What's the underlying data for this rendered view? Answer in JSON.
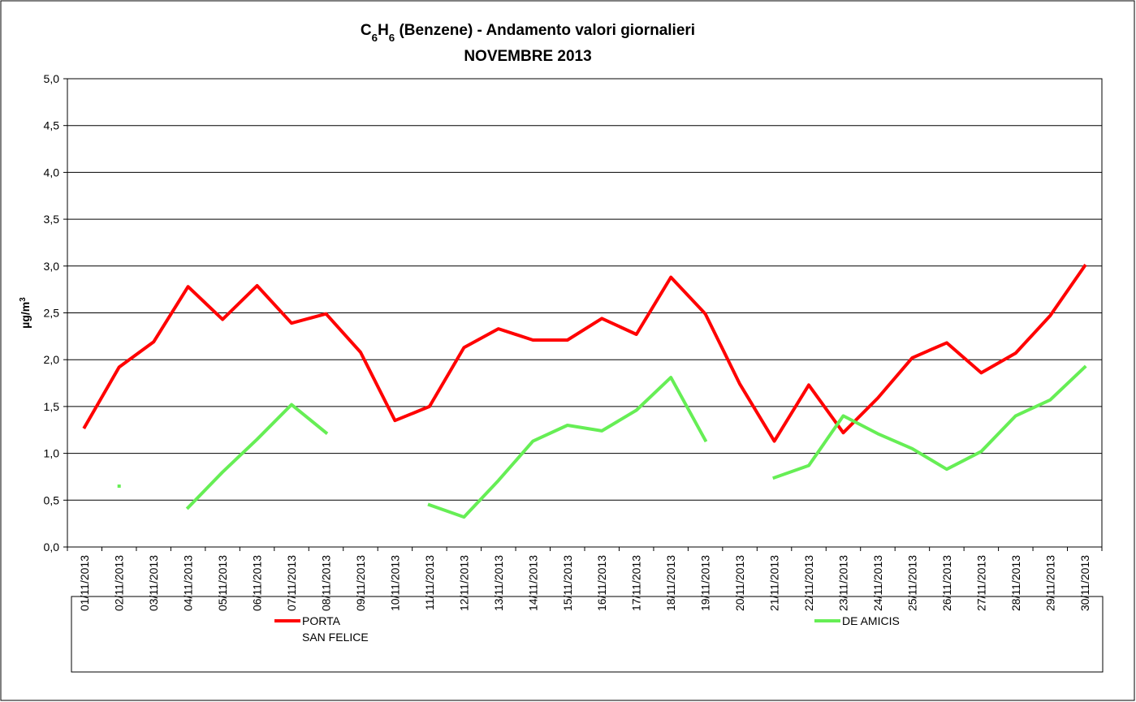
{
  "chart_data": {
    "type": "line",
    "title": [
      "C6H6 (Benzene) - Andamento valori giornalieri",
      "NOVEMBRE 2013"
    ],
    "y_label": "µg/m3",
    "categories": [
      "01/11/2013",
      "02/11/2013",
      "03/11/2013",
      "04/11/2013",
      "05/11/2013",
      "06/11/2013",
      "07/11/2013",
      "08/11/2013",
      "09/11/2013",
      "10/11/2013",
      "11/11/2013",
      "12/11/2013",
      "13/11/2013",
      "14/11/2013",
      "15/11/2013",
      "16/11/2013",
      "17/11/2013",
      "18/11/2013",
      "19/11/2013",
      "20/11/2013",
      "21/11/2013",
      "22/11/2013",
      "23/11/2013",
      "24/11/2013",
      "25/11/2013",
      "26/11/2013",
      "27/11/2013",
      "28/11/2013",
      "29/11/2013",
      "30/11/2013"
    ],
    "series": [
      {
        "name": "PORTA SAN FELICE",
        "color": "#ff0000",
        "values": [
          1.28,
          1.92,
          2.19,
          2.78,
          2.43,
          2.79,
          2.39,
          2.49,
          2.08,
          1.35,
          1.5,
          2.13,
          2.33,
          2.21,
          2.21,
          2.44,
          2.27,
          2.88,
          2.49,
          1.74,
          1.13,
          1.73,
          1.22,
          1.59,
          2.02,
          2.18,
          1.86,
          2.07,
          2.47,
          3.0
        ]
      },
      {
        "name": "DE AMICIS",
        "color": "#66ee55",
        "values": [
          null,
          0.65,
          null,
          0.42,
          0.8,
          1.15,
          1.52,
          1.22,
          null,
          null,
          0.45,
          0.32,
          0.71,
          1.13,
          1.3,
          1.24,
          1.46,
          1.81,
          1.14,
          null,
          0.74,
          0.87,
          1.4,
          1.21,
          1.05,
          0.83,
          1.02,
          1.4,
          1.57,
          1.92
        ]
      }
    ],
    "ylim": [
      0,
      5
    ],
    "yticks": [
      {
        "value": 0,
        "label": "0,0"
      },
      {
        "value": 0.5,
        "label": "0,5"
      },
      {
        "value": 1,
        "label": "1,0"
      },
      {
        "value": 1.5,
        "label": "1,5"
      },
      {
        "value": 2,
        "label": "2,0"
      },
      {
        "value": 2.5,
        "label": "2,5"
      },
      {
        "value": 3,
        "label": "3,0"
      },
      {
        "value": 3.5,
        "label": "3,5"
      },
      {
        "value": 4,
        "label": "4,0"
      },
      {
        "value": 4.5,
        "label": "4,5"
      },
      {
        "value": 5,
        "label": "5,0"
      }
    ],
    "grid": true
  }
}
